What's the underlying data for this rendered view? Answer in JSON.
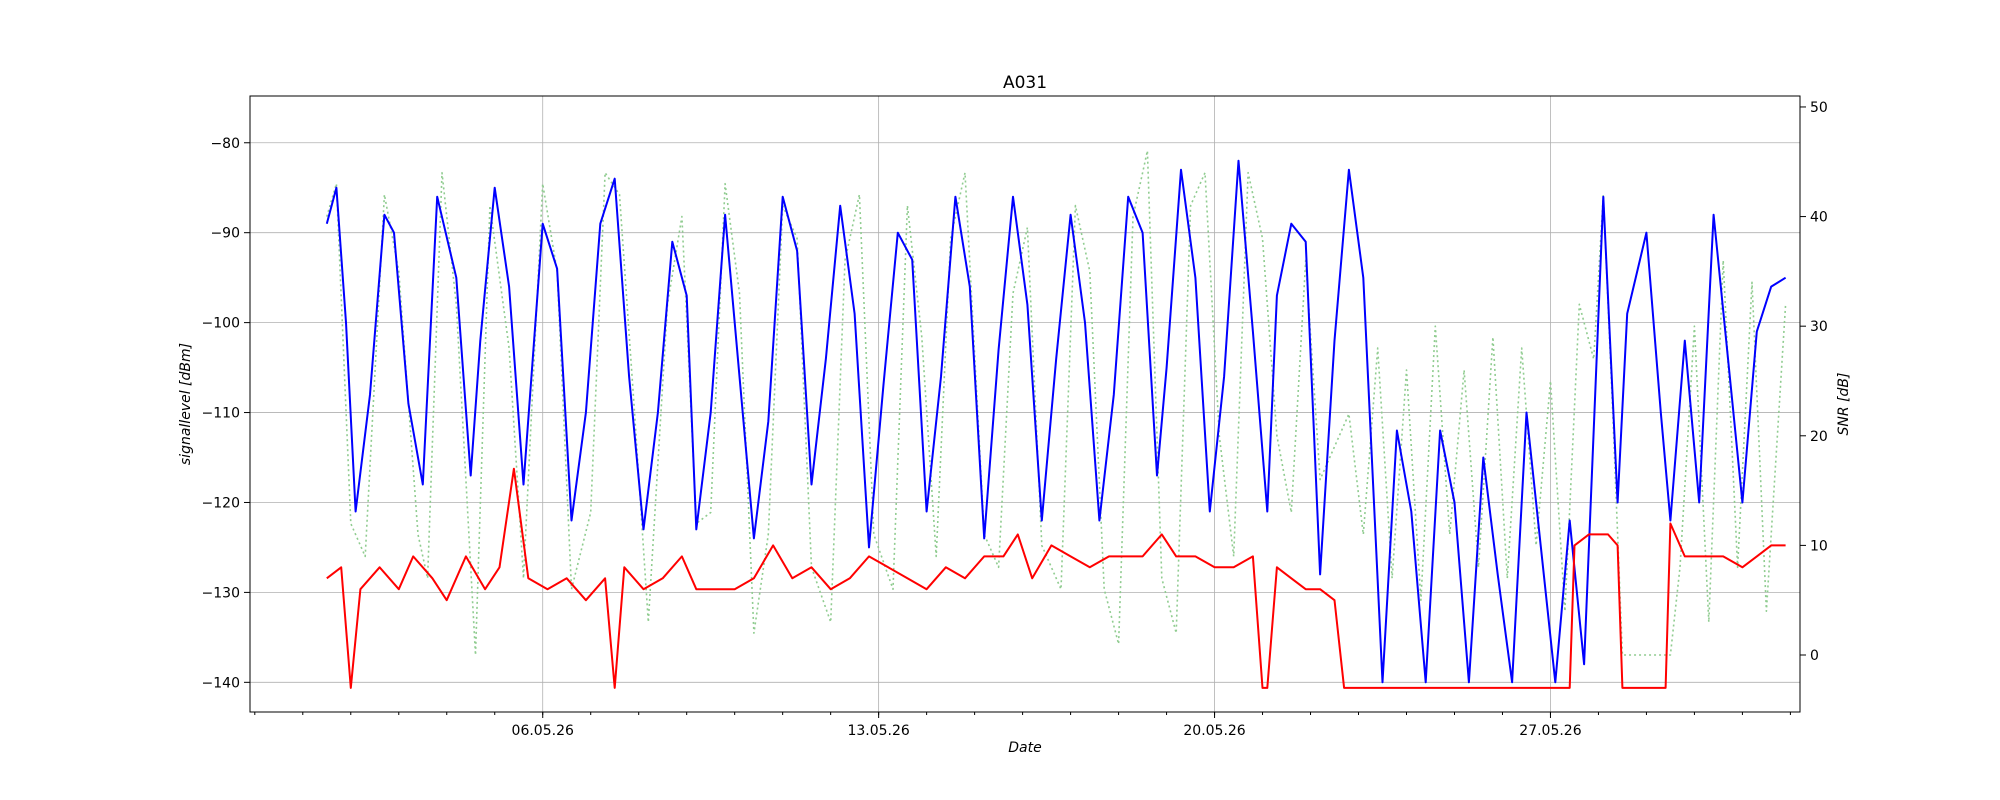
{
  "chart_data": {
    "type": "line",
    "title": "A031",
    "xlabel": "Date",
    "ylabel_left": "signallevel [dBm]",
    "ylabel_right": "SNR [dB]",
    "x_ticks": [
      "06.05.26",
      "13.05.26",
      "20.05.26",
      "27.05.26"
    ],
    "x_tick_days": [
      6,
      13,
      20,
      27
    ],
    "x_range_days": [
      29.9,
      62.2
    ],
    "x_day_label_month_offset": 30,
    "x_minor_tick_days": 1,
    "y_left_ticks": [
      -80,
      -90,
      -100,
      -110,
      -120,
      -130,
      -140
    ],
    "y_left_range": [
      -143.3,
      -74.8
    ],
    "y_right_ticks": [
      0,
      10,
      20,
      30,
      40,
      50
    ],
    "y_right_range": [
      -5.2,
      51.0
    ],
    "grid": true,
    "legend": null,
    "colors": {
      "signal": "#0000ff",
      "snr": "#ff0000",
      "snr_dotted": "#90cc90"
    },
    "series": [
      {
        "axis": "left",
        "color": "#0000ff",
        "style": "solid",
        "points_day_value": [
          [
            31.5,
            -89
          ],
          [
            31.7,
            -85
          ],
          [
            31.9,
            -100
          ],
          [
            32.1,
            -121
          ],
          [
            32.4,
            -108
          ],
          [
            32.7,
            -88
          ],
          [
            32.9,
            -90
          ],
          [
            33.2,
            -109
          ],
          [
            33.5,
            -118
          ],
          [
            33.8,
            -86
          ],
          [
            34.2,
            -95
          ],
          [
            34.5,
            -117
          ],
          [
            34.7,
            -102
          ],
          [
            35,
            -85
          ],
          [
            35.3,
            -96
          ],
          [
            35.6,
            -118
          ],
          [
            36,
            -89
          ],
          [
            36.3,
            -94
          ],
          [
            36.6,
            -122
          ],
          [
            36.9,
            -110
          ],
          [
            37.2,
            -89
          ],
          [
            37.5,
            -84
          ],
          [
            37.8,
            -106
          ],
          [
            38.1,
            -123
          ],
          [
            38.4,
            -110
          ],
          [
            38.7,
            -91
          ],
          [
            39,
            -97
          ],
          [
            39.2,
            -123
          ],
          [
            39.5,
            -110
          ],
          [
            39.8,
            -88
          ],
          [
            40.1,
            -106
          ],
          [
            40.4,
            -124
          ],
          [
            40.7,
            -111
          ],
          [
            41,
            -86
          ],
          [
            41.3,
            -92
          ],
          [
            41.6,
            -118
          ],
          [
            41.9,
            -104
          ],
          [
            42.2,
            -87
          ],
          [
            42.5,
            -99
          ],
          [
            42.8,
            -125
          ],
          [
            43.1,
            -107
          ],
          [
            43.4,
            -90
          ],
          [
            43.7,
            -93
          ],
          [
            44,
            -121
          ],
          [
            44.3,
            -106
          ],
          [
            44.6,
            -86
          ],
          [
            44.9,
            -96
          ],
          [
            45.2,
            -124
          ],
          [
            45.5,
            -103
          ],
          [
            45.8,
            -86
          ],
          [
            46.1,
            -98
          ],
          [
            46.4,
            -122
          ],
          [
            46.7,
            -104
          ],
          [
            47,
            -88
          ],
          [
            47.3,
            -100
          ],
          [
            47.6,
            -122
          ],
          [
            47.9,
            -108
          ],
          [
            48.2,
            -86
          ],
          [
            48.5,
            -90
          ],
          [
            48.8,
            -117
          ],
          [
            49,
            -105
          ],
          [
            49.3,
            -83
          ],
          [
            49.6,
            -95
          ],
          [
            49.9,
            -121
          ],
          [
            50.2,
            -106
          ],
          [
            50.5,
            -82
          ],
          [
            50.8,
            -101
          ],
          [
            51.1,
            -121
          ],
          [
            51.3,
            -97
          ],
          [
            51.6,
            -89
          ],
          [
            51.9,
            -91
          ],
          [
            52.2,
            -128
          ],
          [
            52.5,
            -102
          ],
          [
            52.8,
            -83
          ],
          [
            53.1,
            -95
          ],
          [
            53.5,
            -140
          ],
          [
            53.8,
            -112
          ],
          [
            54.1,
            -121
          ],
          [
            54.4,
            -140
          ],
          [
            54.7,
            -112
          ],
          [
            55,
            -120
          ],
          [
            55.3,
            -140
          ],
          [
            55.6,
            -115
          ],
          [
            55.9,
            -128
          ],
          [
            56.2,
            -140
          ],
          [
            56.5,
            -110
          ],
          [
            56.8,
            -125
          ],
          [
            57.1,
            -140
          ],
          [
            57.4,
            -122
          ],
          [
            57.7,
            -138
          ],
          [
            58.1,
            -86
          ],
          [
            58.4,
            -120
          ],
          [
            58.6,
            -99
          ],
          [
            59,
            -90
          ],
          [
            59.3,
            -110
          ],
          [
            59.5,
            -122
          ],
          [
            59.8,
            -102
          ],
          [
            60.1,
            -120
          ],
          [
            60.4,
            -88
          ],
          [
            60.7,
            -104
          ],
          [
            61,
            -120
          ],
          [
            61.3,
            -101
          ],
          [
            61.6,
            -96
          ],
          [
            61.9,
            -95
          ]
        ]
      },
      {
        "axis": "right",
        "color": "#ff0000",
        "style": "solid",
        "points_day_value": [
          [
            31.5,
            7
          ],
          [
            31.8,
            8
          ],
          [
            32,
            -3
          ],
          [
            32.2,
            6
          ],
          [
            32.6,
            8
          ],
          [
            33,
            6
          ],
          [
            33.3,
            9
          ],
          [
            33.7,
            7
          ],
          [
            34,
            5
          ],
          [
            34.4,
            9
          ],
          [
            34.8,
            6
          ],
          [
            35.1,
            8
          ],
          [
            35.4,
            17
          ],
          [
            35.7,
            7
          ],
          [
            36.1,
            6
          ],
          [
            36.5,
            7
          ],
          [
            36.9,
            5
          ],
          [
            37.3,
            7
          ],
          [
            37.5,
            -3
          ],
          [
            37.7,
            8
          ],
          [
            38.1,
            6
          ],
          [
            38.5,
            7
          ],
          [
            38.9,
            9
          ],
          [
            39.2,
            6
          ],
          [
            39.6,
            6
          ],
          [
            40,
            6
          ],
          [
            40.4,
            7
          ],
          [
            40.8,
            10
          ],
          [
            41.2,
            7
          ],
          [
            41.6,
            8
          ],
          [
            42,
            6
          ],
          [
            42.4,
            7
          ],
          [
            42.8,
            9
          ],
          [
            43.2,
            8
          ],
          [
            43.6,
            7
          ],
          [
            44,
            6
          ],
          [
            44.4,
            8
          ],
          [
            44.8,
            7
          ],
          [
            45.2,
            9
          ],
          [
            45.6,
            9
          ],
          [
            45.9,
            11
          ],
          [
            46.2,
            7
          ],
          [
            46.6,
            10
          ],
          [
            47,
            9
          ],
          [
            47.4,
            8
          ],
          [
            47.8,
            9
          ],
          [
            48.1,
            9
          ],
          [
            48.5,
            9
          ],
          [
            48.9,
            11
          ],
          [
            49.2,
            9
          ],
          [
            49.6,
            9
          ],
          [
            50,
            8
          ],
          [
            50.4,
            8
          ],
          [
            50.8,
            9
          ],
          [
            51,
            -3
          ],
          [
            51.1,
            -3
          ],
          [
            51.3,
            8
          ],
          [
            51.6,
            7
          ],
          [
            51.9,
            6
          ],
          [
            52.2,
            6
          ],
          [
            52.5,
            5
          ],
          [
            52.7,
            -3
          ],
          [
            53.5,
            -3
          ],
          [
            54.5,
            -3
          ],
          [
            55.5,
            -3
          ],
          [
            56.5,
            -3
          ],
          [
            57.4,
            -3
          ],
          [
            57.5,
            10
          ],
          [
            57.8,
            11
          ],
          [
            58.2,
            11
          ],
          [
            58.4,
            10
          ],
          [
            58.5,
            -3
          ],
          [
            59.4,
            -3
          ],
          [
            59.5,
            12
          ],
          [
            59.8,
            9
          ],
          [
            60.2,
            9
          ],
          [
            60.6,
            9
          ],
          [
            61,
            8
          ],
          [
            61.3,
            9
          ],
          [
            61.6,
            10
          ],
          [
            61.9,
            10
          ]
        ]
      },
      {
        "axis": "right",
        "color": "#90cc90",
        "style": "dotted",
        "points_day_value": [
          [
            31.5,
            40
          ],
          [
            31.7,
            43
          ],
          [
            32,
            12
          ],
          [
            32.3,
            9
          ],
          [
            32.7,
            42
          ],
          [
            33,
            35
          ],
          [
            33.4,
            11
          ],
          [
            33.6,
            7
          ],
          [
            33.9,
            44
          ],
          [
            34.2,
            32
          ],
          [
            34.6,
            0
          ],
          [
            34.9,
            41
          ],
          [
            35.3,
            28
          ],
          [
            35.6,
            7
          ],
          [
            36,
            43
          ],
          [
            36.3,
            35
          ],
          [
            36.6,
            6
          ],
          [
            37,
            13
          ],
          [
            37.3,
            44
          ],
          [
            37.6,
            42
          ],
          [
            37.9,
            23
          ],
          [
            38.2,
            3
          ],
          [
            38.6,
            32
          ],
          [
            38.9,
            40
          ],
          [
            39.2,
            12
          ],
          [
            39.5,
            13
          ],
          [
            39.8,
            43
          ],
          [
            40.1,
            33
          ],
          [
            40.4,
            2
          ],
          [
            40.7,
            11
          ],
          [
            41,
            41
          ],
          [
            41.3,
            38
          ],
          [
            41.6,
            8
          ],
          [
            42,
            3
          ],
          [
            42.3,
            36
          ],
          [
            42.6,
            42
          ],
          [
            42.9,
            11
          ],
          [
            43.3,
            6
          ],
          [
            43.6,
            41
          ],
          [
            43.9,
            29
          ],
          [
            44.2,
            9
          ],
          [
            44.5,
            38
          ],
          [
            44.8,
            44
          ],
          [
            45.2,
            11
          ],
          [
            45.5,
            8
          ],
          [
            45.8,
            33
          ],
          [
            46.1,
            39
          ],
          [
            46.4,
            10
          ],
          [
            46.8,
            6
          ],
          [
            47.1,
            41
          ],
          [
            47.4,
            35
          ],
          [
            47.7,
            6
          ],
          [
            48,
            1
          ],
          [
            48.3,
            40
          ],
          [
            48.6,
            46
          ],
          [
            48.9,
            7
          ],
          [
            49.2,
            2
          ],
          [
            49.5,
            41
          ],
          [
            49.8,
            44
          ],
          [
            50.1,
            20
          ],
          [
            50.4,
            9
          ],
          [
            50.7,
            44
          ],
          [
            51,
            38
          ],
          [
            51.3,
            20
          ],
          [
            51.6,
            13
          ],
          [
            51.9,
            36
          ],
          [
            52.2,
            16
          ],
          [
            52.5,
            19
          ],
          [
            52.8,
            22
          ],
          [
            53.1,
            11
          ],
          [
            53.4,
            28
          ],
          [
            53.7,
            7
          ],
          [
            54,
            26
          ],
          [
            54.3,
            5
          ],
          [
            54.6,
            30
          ],
          [
            54.9,
            11
          ],
          [
            55.2,
            26
          ],
          [
            55.5,
            8
          ],
          [
            55.8,
            29
          ],
          [
            56.1,
            7
          ],
          [
            56.4,
            28
          ],
          [
            56.7,
            10
          ],
          [
            57,
            25
          ],
          [
            57.3,
            4
          ],
          [
            57.6,
            32
          ],
          [
            57.9,
            27
          ],
          [
            58.1,
            42
          ],
          [
            58.3,
            22
          ],
          [
            58.5,
            0
          ],
          [
            59.5,
            0
          ],
          [
            59.7,
            8
          ],
          [
            60,
            30
          ],
          [
            60.3,
            3
          ],
          [
            60.6,
            36
          ],
          [
            60.9,
            8
          ],
          [
            61.2,
            34
          ],
          [
            61.5,
            4
          ],
          [
            61.9,
            32
          ]
        ]
      }
    ]
  }
}
